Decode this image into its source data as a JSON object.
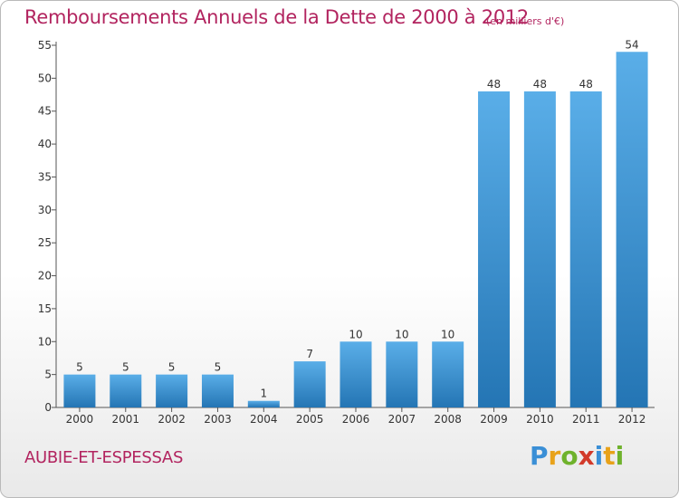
{
  "header": {
    "title": "Remboursements Annuels de la Dette de 2000 à 2012",
    "unit": "(en milliers d'€)"
  },
  "footer": {
    "commune": "AUBIE-ET-ESPESSAS",
    "logo_letters": [
      "P",
      "r",
      "o",
      "x",
      "i",
      "t",
      "i"
    ],
    "logo_colors": [
      "#3a8fd6",
      "#e8a21a",
      "#6fb22c",
      "#d23a2a",
      "#3a8fd6",
      "#e8a21a",
      "#6fb22c"
    ]
  },
  "chart_data": {
    "type": "bar",
    "categories": [
      "2000",
      "2001",
      "2002",
      "2003",
      "2004",
      "2005",
      "2006",
      "2007",
      "2008",
      "2009",
      "2010",
      "2011",
      "2012"
    ],
    "values": [
      5,
      5,
      5,
      5,
      1,
      7,
      10,
      10,
      10,
      48,
      48,
      48,
      54
    ],
    "data_labels": [
      "5",
      "5",
      "5",
      "5",
      "1",
      "7",
      "10",
      "10",
      "10",
      "48",
      "48",
      "48",
      "54"
    ],
    "title": "Remboursements Annuels de la Dette de 2000 à 2012",
    "ylim": [
      0,
      55
    ],
    "yticks": [
      0,
      5,
      10,
      15,
      20,
      25,
      30,
      35,
      40,
      45,
      50,
      55
    ],
    "ytick_labels": [
      "0",
      "5",
      "10",
      "15",
      "20",
      "25",
      "30",
      "35",
      "40",
      "45",
      "50",
      "55"
    ],
    "grid": false,
    "bar_color_top": "#5aaee8",
    "bar_color_bottom": "#2475b4"
  }
}
